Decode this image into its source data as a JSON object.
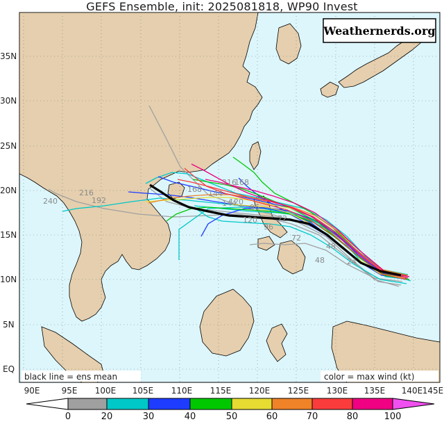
{
  "title": "GEFS Ensemble, init: 2025081818, WP90 Invest",
  "watermark": "Weathernerds.org",
  "legend_left": "black line = ens mean",
  "legend_right": "color = max wind (kt)",
  "lon_labels": [
    "90E",
    "95E",
    "100E",
    "105E",
    "110E",
    "115E",
    "120E",
    "125E",
    "130E",
    "135E",
    "140E",
    "145E"
  ],
  "lat_labels": [
    "EQ",
    "5N",
    "10N",
    "15N",
    "20N",
    "25N",
    "30N",
    "35N"
  ],
  "colorbar": {
    "ticks": [
      "0",
      "20",
      "30",
      "40",
      "50",
      "60",
      "70",
      "80",
      "100"
    ],
    "colors": [
      "#ffffff",
      "#a0a0a0",
      "#00c8c8",
      "#1e3cff",
      "#00c800",
      "#e6dc32",
      "#f08228",
      "#fa3c3c",
      "#f00082",
      "#f050f0"
    ]
  },
  "hour_labels": [
    "240",
    "216",
    "192",
    "168",
    "144",
    "120",
    "96",
    "72",
    "48",
    "24",
    "216",
    "168",
    "144",
    "120",
    "96",
    "72",
    "48"
  ],
  "colors": {
    "ocean": "#dcf6fc",
    "land": "#e5cfae",
    "coast": "#000000",
    "mean_track": "#000000"
  }
}
